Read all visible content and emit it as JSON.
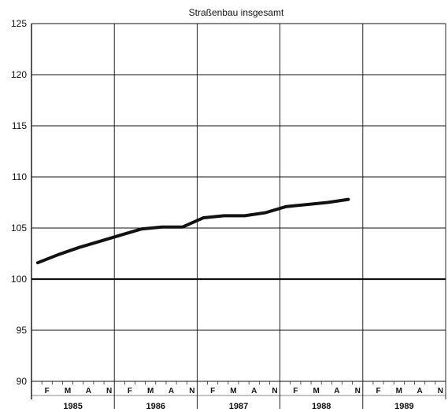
{
  "chart_data": {
    "type": "line",
    "title": "Straßenbau insgesamt",
    "xlabel": "",
    "ylabel": "",
    "ylim": [
      90,
      125
    ],
    "yticks": [
      90,
      95,
      100,
      105,
      110,
      115,
      120,
      125
    ],
    "reference_line": 100,
    "years": [
      "1985",
      "1986",
      "1987",
      "1988",
      "1989"
    ],
    "month_labels": [
      "F",
      "M",
      "A",
      "N"
    ],
    "grid": true,
    "series": [
      {
        "values": [
          101.6,
          102.4,
          103.1,
          103.7,
          104.3,
          104.9,
          105.1,
          105.1,
          106.0,
          106.2,
          106.2,
          106.5,
          107.1,
          107.3,
          107.5,
          107.8
        ],
        "color": "#111111"
      }
    ]
  }
}
